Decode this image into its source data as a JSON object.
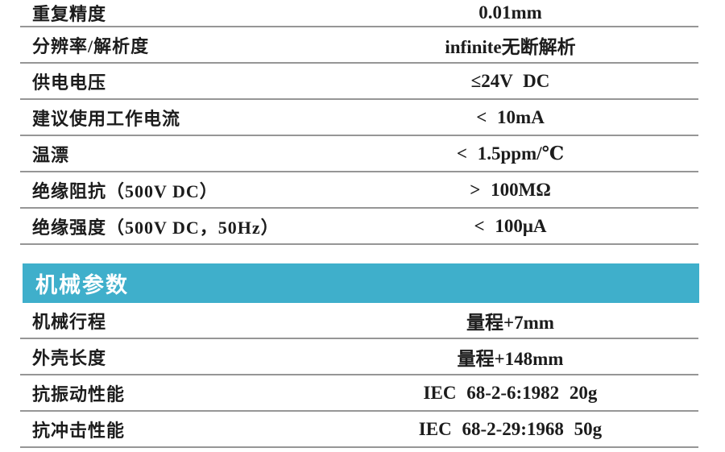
{
  "colors": {
    "accent_teal": "#3FAFCB",
    "rule_line": "#969696",
    "text": "#1C1C1C",
    "section_title_text": "#FFFFFF",
    "background": "#FFFFFF"
  },
  "spec_table_top": {
    "rows": [
      {
        "label": "重复精度",
        "value": "0.01mm"
      },
      {
        "label": "分辨率/解析度",
        "value": "infinite无断解析"
      },
      {
        "label": "供电电压",
        "value": "≤24V  DC"
      },
      {
        "label": "建议使用工作电流",
        "value": "< 10mA"
      },
      {
        "label": "温漂",
        "value": "< 1.5ppm/℃"
      },
      {
        "label": "绝缘阻抗（500V  DC）",
        "value": "> 100MΩ"
      },
      {
        "label": "绝缘强度（500V  DC，50Hz）",
        "value": "< 100μA"
      }
    ]
  },
  "section_header": {
    "title": "机械参数"
  },
  "spec_table_mechanical": {
    "rows": [
      {
        "label": "机械行程",
        "value": "量程+7mm"
      },
      {
        "label": "外壳长度",
        "value": "量程+148mm"
      },
      {
        "label": "抗振动性能",
        "value": "IEC  68-2-6:1982  20g"
      },
      {
        "label": "抗冲击性能",
        "value": "IEC  68-2-29:1968  50g"
      }
    ]
  }
}
